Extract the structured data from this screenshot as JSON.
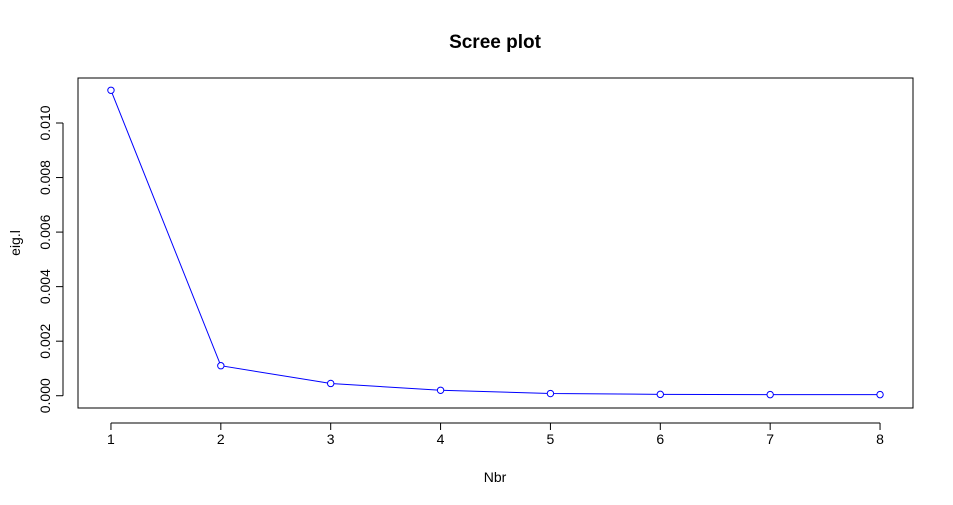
{
  "chart_data": {
    "type": "line",
    "title": "Scree plot",
    "xlabel": "Nbr",
    "ylabel": "eig.l",
    "x": [
      1,
      2,
      3,
      4,
      5,
      6,
      7,
      8
    ],
    "series": [
      {
        "values": [
          0.0112,
          0.0011,
          0.00045,
          0.0002,
          8e-05,
          5e-05,
          4e-05,
          4e-05
        ]
      }
    ],
    "xticks": [
      "1",
      "2",
      "3",
      "4",
      "5",
      "6",
      "7",
      "8"
    ],
    "yticks": [
      "0.000",
      "0.002",
      "0.004",
      "0.006",
      "0.008",
      "0.010"
    ],
    "xlim": [
      0.7,
      8.3
    ],
    "ylim": [
      -0.00045,
      0.01165
    ],
    "grid": false,
    "line_color": "#0000ff",
    "marker": "open-circle"
  }
}
